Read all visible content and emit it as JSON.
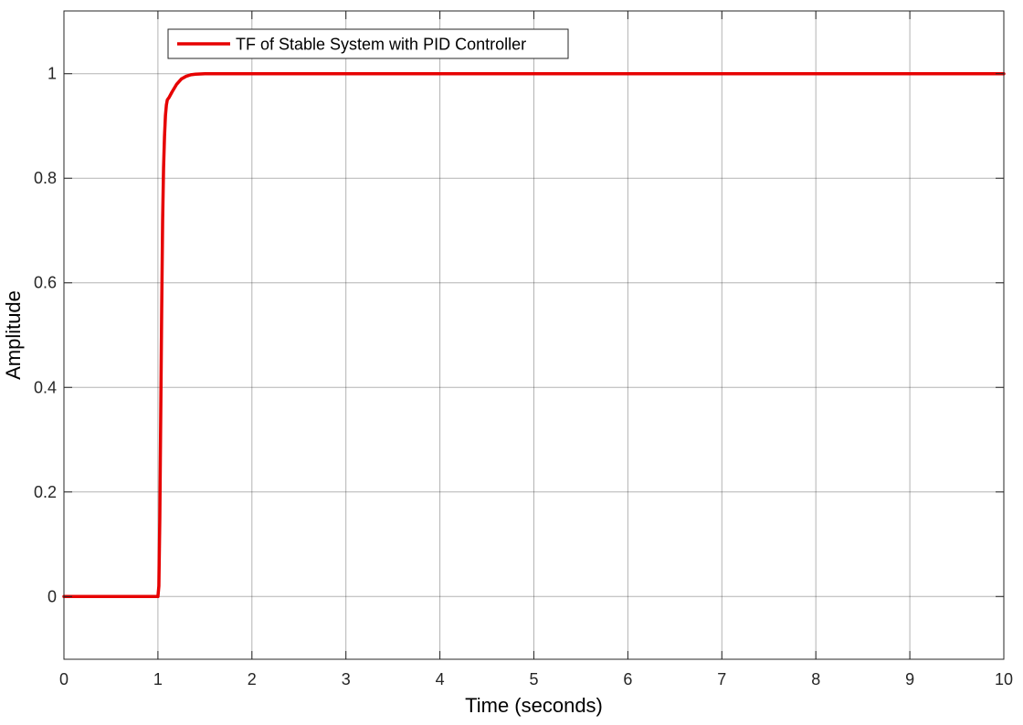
{
  "chart_data": {
    "type": "line",
    "title": "",
    "xlabel": "Time (seconds)",
    "ylabel": "Amplitude",
    "xlim": [
      0,
      10
    ],
    "ylim": [
      -0.12,
      1.12
    ],
    "xticks": [
      0,
      1,
      2,
      3,
      4,
      5,
      6,
      7,
      8,
      9,
      10
    ],
    "yticks": [
      0,
      0.2,
      0.4,
      0.6,
      0.8,
      1
    ],
    "ytick_labels": [
      "0",
      "0.2",
      "0.4",
      "0.6",
      "0.8",
      "1"
    ],
    "xtick_labels": [
      "0",
      "1",
      "2",
      "3",
      "4",
      "5",
      "6",
      "7",
      "8",
      "9",
      "10"
    ],
    "grid": true,
    "legend_position": "top-left",
    "series": [
      {
        "name": "TF of Stable System with PID Controller",
        "color": "#e60000",
        "x": [
          0,
          1.0,
          1.01,
          1.02,
          1.03,
          1.04,
          1.05,
          1.06,
          1.07,
          1.08,
          1.09,
          1.1,
          1.12,
          1.15,
          1.2,
          1.25,
          1.3,
          1.35,
          1.4,
          1.5,
          1.6,
          2,
          3,
          4,
          5,
          6,
          7,
          8,
          9,
          10
        ],
        "y": [
          0,
          0,
          0.02,
          0.15,
          0.35,
          0.55,
          0.72,
          0.82,
          0.88,
          0.92,
          0.94,
          0.95,
          0.955,
          0.965,
          0.98,
          0.99,
          0.995,
          0.998,
          0.999,
          1.0,
          1.0,
          1.0,
          1.0,
          1.0,
          1.0,
          1.0,
          1.0,
          1.0,
          1.0,
          1.0
        ]
      }
    ]
  }
}
